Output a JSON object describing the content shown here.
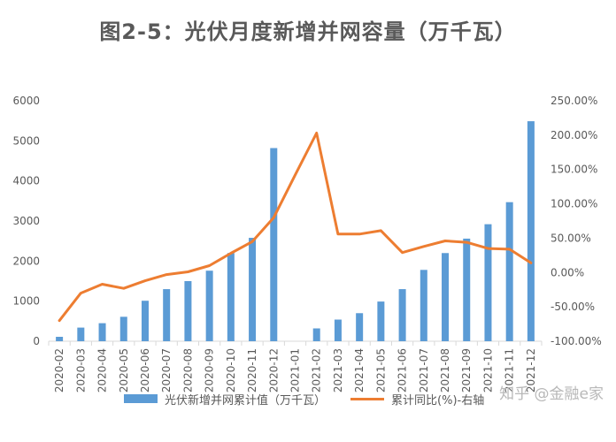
{
  "chart_data": {
    "type": "bar",
    "title": "图2-5：光伏月度新增并网容量（万千瓦）",
    "categories": [
      "2020-02",
      "2020-03",
      "2020-04",
      "2020-05",
      "2020-06",
      "2020-07",
      "2020-08",
      "2020-09",
      "2020-10",
      "2020-11",
      "2020-12",
      "2021-01",
      "2021-02",
      "2021-03",
      "2021-04",
      "2021-05",
      "2021-06",
      "2021-07",
      "2021-08",
      "2021-09",
      "2021-10",
      "2021-11",
      "2021-12"
    ],
    "series": [
      {
        "name": "光伏新增并网累计值（万千瓦）",
        "kind": "bar",
        "axis": "left",
        "color": "#5b9bd5",
        "values": [
          110,
          340,
          450,
          610,
          1010,
          1300,
          1500,
          1760,
          2200,
          2580,
          4820,
          null,
          320,
          540,
          700,
          990,
          1300,
          1780,
          2200,
          2560,
          2920,
          3470,
          5490
        ]
      },
      {
        "name": "累计同比(%)-右轴",
        "kind": "line",
        "axis": "right",
        "color": "#ed7d31",
        "values": [
          -70,
          -30,
          -17,
          -23,
          -12,
          -3,
          1,
          10,
          28,
          45,
          80,
          142,
          203,
          56,
          56,
          61,
          29,
          38,
          46,
          44,
          35,
          34,
          14
        ]
      }
    ],
    "yleft": {
      "min": 0,
      "max": 6000,
      "ticks": [
        0,
        1000,
        2000,
        3000,
        4000,
        5000,
        6000
      ]
    },
    "yright": {
      "min": -100,
      "max": 250,
      "ticks": [
        "-100.00%",
        "-50.00%",
        "0.00%",
        "50.00%",
        "100.00%",
        "150.00%",
        "200.00%",
        "250.00%"
      ]
    },
    "legend_position": "bottom",
    "grid": false
  },
  "watermark": "知乎 @金融e家"
}
